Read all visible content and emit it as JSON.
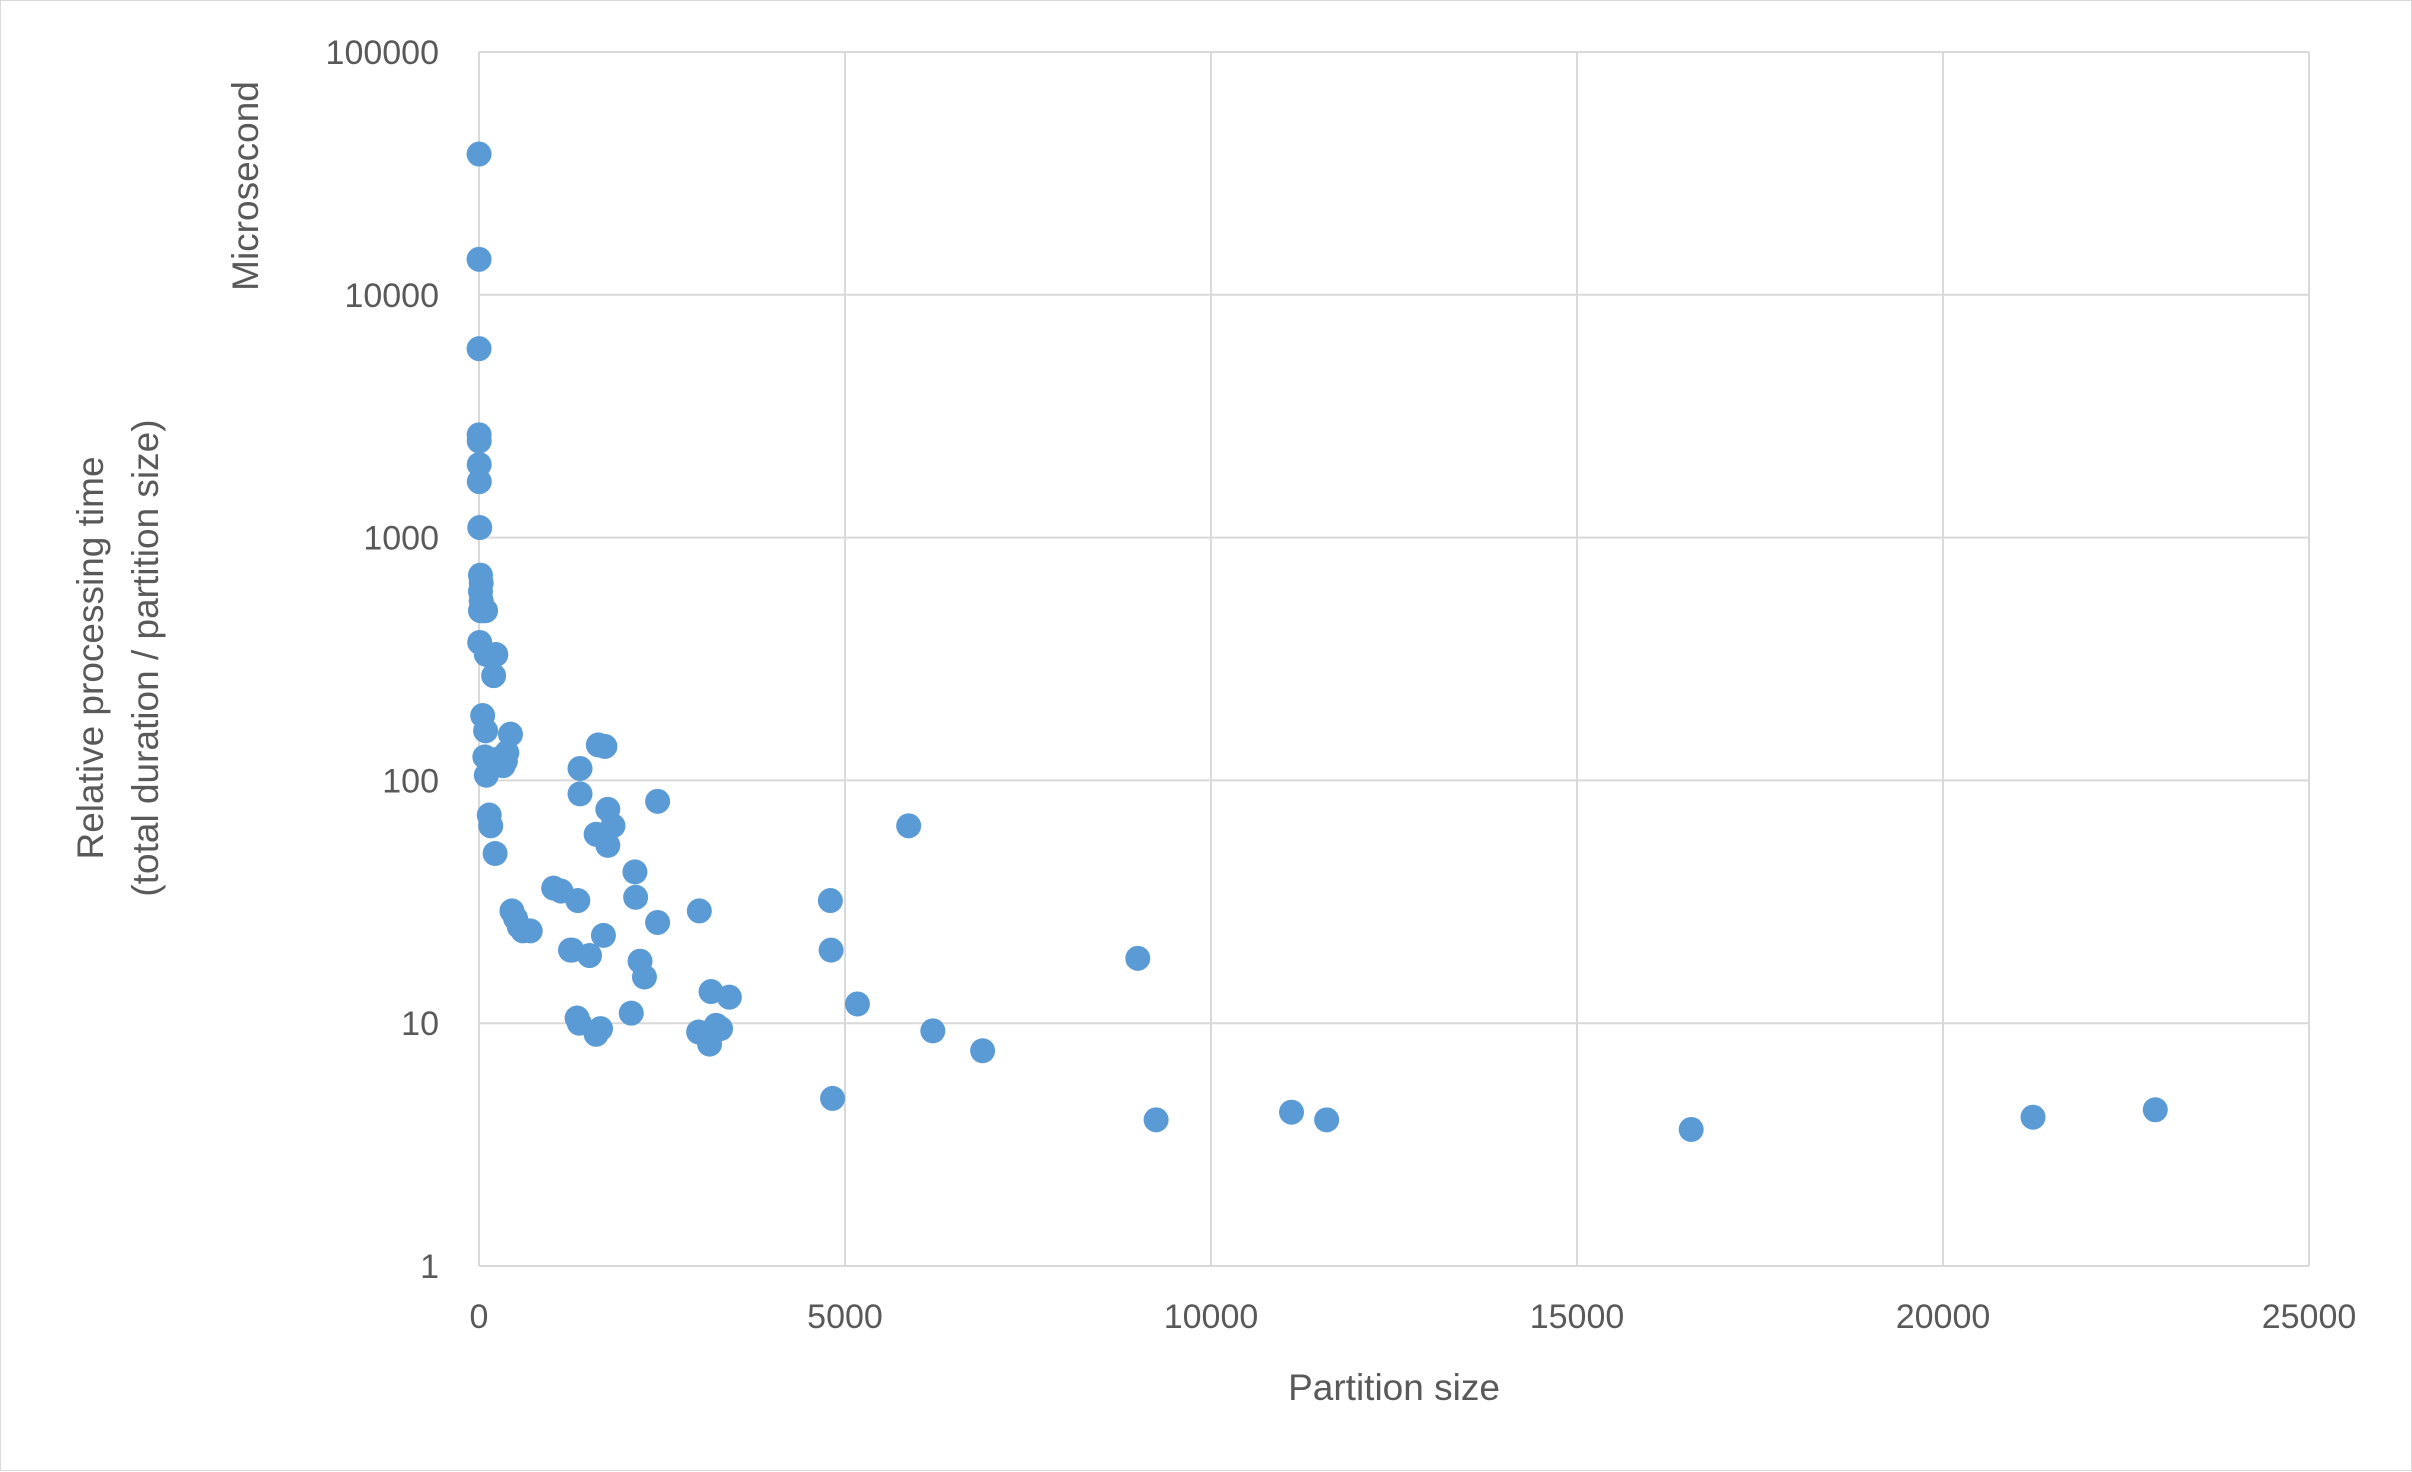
{
  "chart_data": {
    "type": "scatter",
    "xlabel": "Partition size",
    "ylabel_lines": [
      "Relative processing time",
      "(total duration / partition size)"
    ],
    "annotation": "Microsecond",
    "xlim": [
      0,
      25000
    ],
    "ylim": [
      1,
      100000
    ],
    "yscale": "log",
    "grid": true,
    "marker_color": "#5B9BD5",
    "x_ticks": [
      "0",
      "5000",
      "10000",
      "15000",
      "20000",
      "25000"
    ],
    "y_ticks": [
      "1",
      "10",
      "100",
      "1000",
      "10000",
      "100000"
    ],
    "series": [
      {
        "points": [
          [
            1,
            38000
          ],
          [
            1,
            14000
          ],
          [
            1,
            6000
          ],
          [
            2,
            2650
          ],
          [
            3,
            2500
          ],
          [
            3,
            2000
          ],
          [
            4,
            1700
          ],
          [
            10,
            1100
          ],
          [
            20,
            700
          ],
          [
            30,
            650
          ],
          [
            20,
            600
          ],
          [
            30,
            550
          ],
          [
            40,
            520
          ],
          [
            50,
            500
          ],
          [
            20,
            500
          ],
          [
            90,
            500
          ],
          [
            10,
            370
          ],
          [
            100,
            330
          ],
          [
            230,
            330
          ],
          [
            200,
            270
          ],
          [
            50,
            185
          ],
          [
            90,
            160
          ],
          [
            430,
            155
          ],
          [
            80,
            125
          ],
          [
            150,
            120
          ],
          [
            240,
            122
          ],
          [
            360,
            120
          ],
          [
            380,
            130
          ],
          [
            330,
            115
          ],
          [
            100,
            105
          ],
          [
            140,
            72
          ],
          [
            160,
            65
          ],
          [
            220,
            50
          ],
          [
            450,
            29
          ],
          [
            500,
            27
          ],
          [
            550,
            25
          ],
          [
            600,
            24
          ],
          [
            700,
            24
          ],
          [
            1020,
            36
          ],
          [
            1120,
            35
          ],
          [
            1350,
            32
          ],
          [
            1380,
            112
          ],
          [
            1380,
            88
          ],
          [
            1630,
            140
          ],
          [
            1720,
            138
          ],
          [
            1600,
            60
          ],
          [
            1760,
            54
          ],
          [
            1760,
            76
          ],
          [
            1830,
            65
          ],
          [
            2440,
            82
          ],
          [
            2130,
            42
          ],
          [
            2140,
            33
          ],
          [
            2440,
            26
          ],
          [
            3010,
            29
          ],
          [
            1250,
            20
          ],
          [
            1270,
            20
          ],
          [
            1510,
            19
          ],
          [
            1700,
            23
          ],
          [
            2200,
            18
          ],
          [
            2260,
            15.5
          ],
          [
            1340,
            10.5
          ],
          [
            1370,
            10
          ],
          [
            1600,
            9
          ],
          [
            1660,
            9.5
          ],
          [
            2080,
            11
          ],
          [
            3000,
            9.2
          ],
          [
            3170,
            13.5
          ],
          [
            3150,
            8.2
          ],
          [
            3240,
            9.8
          ],
          [
            3300,
            9.5
          ],
          [
            3420,
            12.8
          ],
          [
            4800,
            32
          ],
          [
            4810,
            20
          ],
          [
            4830,
            4.9
          ],
          [
            5170,
            12
          ],
          [
            5870,
            65
          ],
          [
            6200,
            9.3
          ],
          [
            6880,
            7.7
          ],
          [
            9000,
            18.5
          ],
          [
            9250,
            4
          ],
          [
            11100,
            4.3
          ],
          [
            11580,
            4
          ],
          [
            16560,
            3.65
          ],
          [
            21230,
            4.1
          ],
          [
            22900,
            4.4
          ]
        ]
      }
    ]
  }
}
